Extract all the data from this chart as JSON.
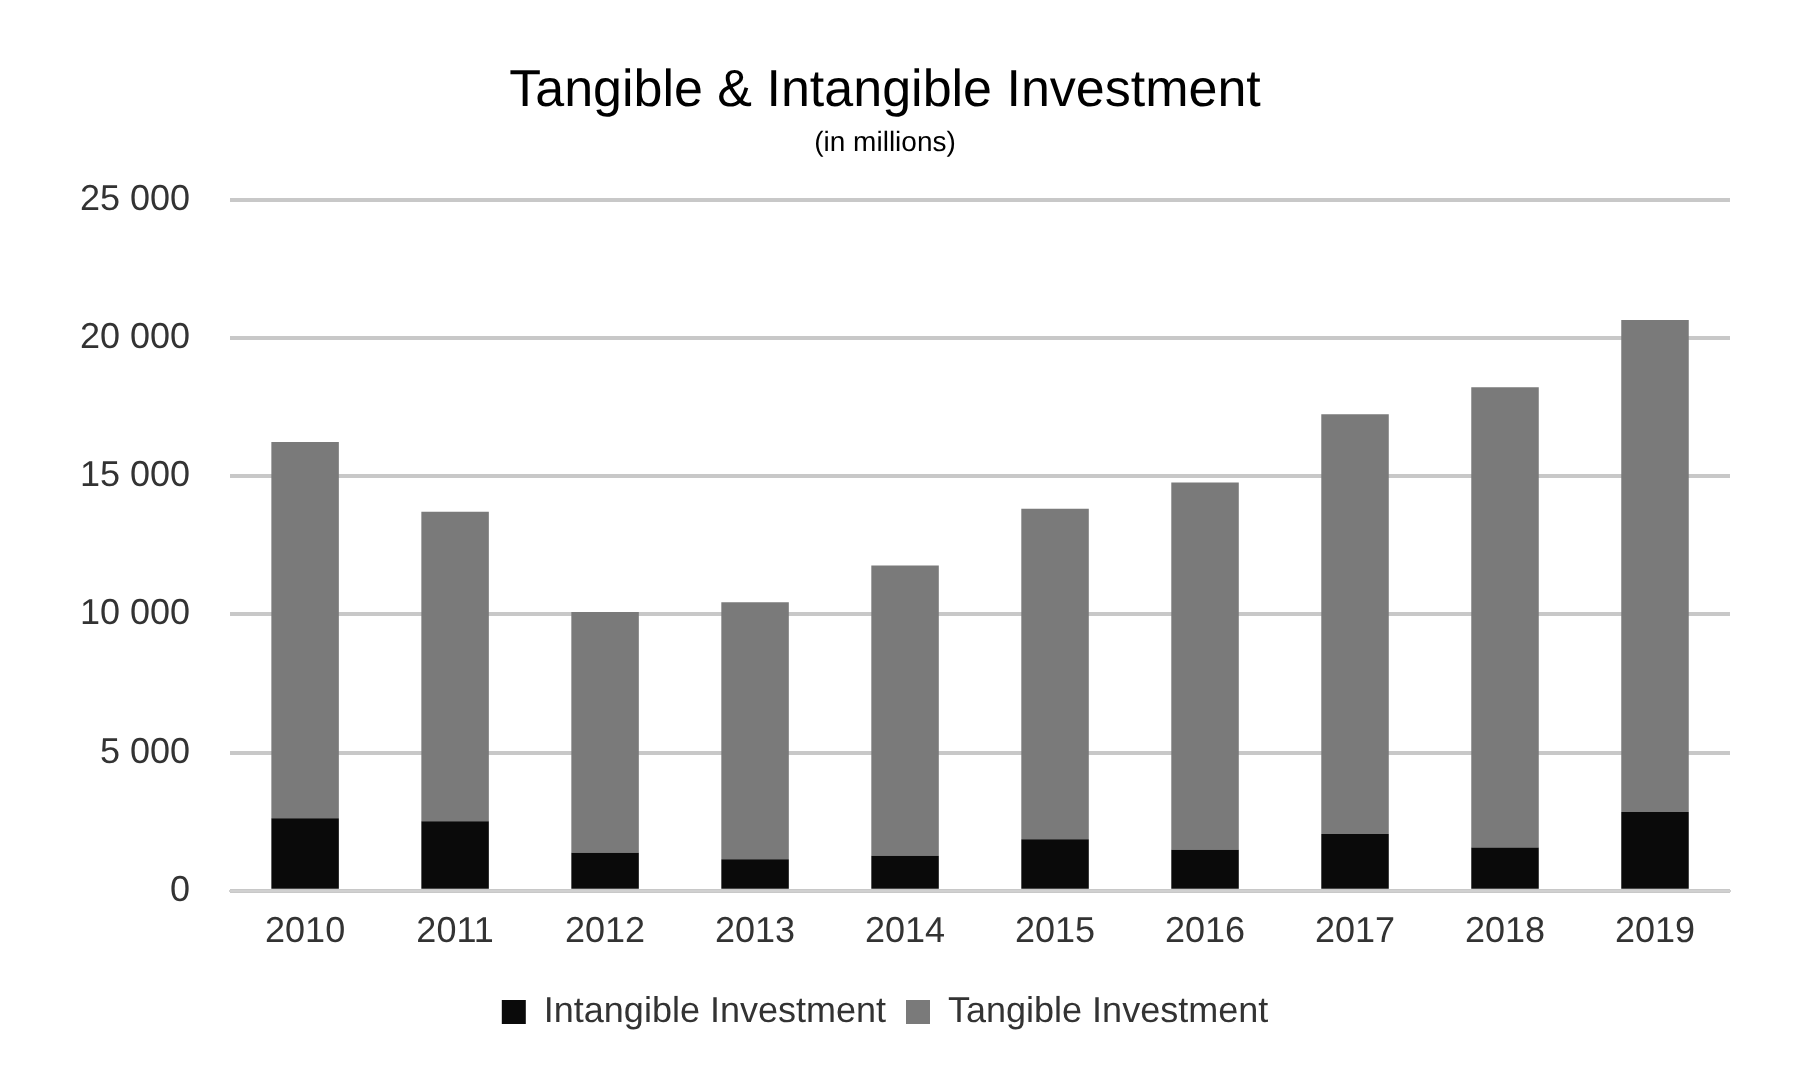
{
  "chart_data": {
    "type": "bar",
    "title": "Tangible & Intangible Investment",
    "subtitle": "(in millions)",
    "categories": [
      "2010",
      "2011",
      "2012",
      "2013",
      "2014",
      "2015",
      "2016",
      "2017",
      "2018",
      "2019"
    ],
    "series": [
      {
        "name": "Intangible Investment",
        "color": "#0a0a0a",
        "values": [
          2630,
          2520,
          1380,
          1140,
          1270,
          1870,
          1490,
          2060,
          1570,
          2850
        ]
      },
      {
        "name": "Tangible Investment",
        "color": "#7a7a7a",
        "values": [
          13610,
          11200,
          8710,
          9300,
          10500,
          11960,
          13290,
          15190,
          16650,
          17810
        ]
      }
    ],
    "stacked": true,
    "ylim": [
      0,
      25000
    ],
    "yticks": [
      {
        "value": 0,
        "label": "0"
      },
      {
        "value": 5000,
        "label": "5 000"
      },
      {
        "value": 10000,
        "label": "10 000"
      },
      {
        "value": 15000,
        "label": "15 000"
      },
      {
        "value": 20000,
        "label": "20 000"
      },
      {
        "value": 25000,
        "label": "25 000"
      }
    ],
    "grid": "y",
    "legend": "bottom"
  }
}
